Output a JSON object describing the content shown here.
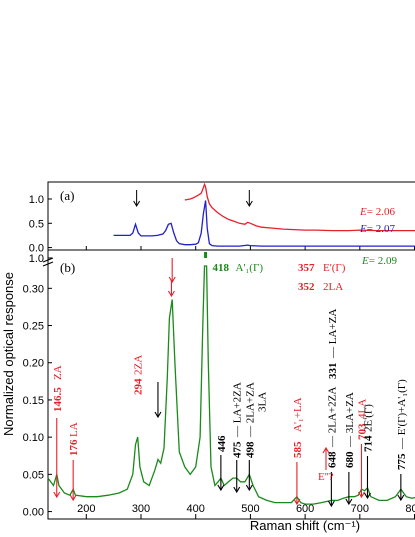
{
  "chart_data": {
    "type": "line",
    "xlabel": "Raman shift (cm⁻¹)",
    "ylabel": "Normalized optical response",
    "xlim": [
      130,
      810
    ],
    "x_ticks": [
      "200",
      "300",
      "400",
      "500",
      "600",
      "700",
      "800"
    ],
    "x_tick_values": [
      200,
      300,
      400,
      500,
      600,
      700,
      800
    ],
    "panels": [
      {
        "label": "(a)",
        "ylim": [
          -0.05,
          1.35
        ],
        "y_ticks": [
          "0.0",
          "0.5",
          "1.0"
        ],
        "y_tick_values": [
          0.0,
          0.5,
          1.0
        ],
        "series": [
          {
            "name": "E=2.06",
            "color": "#e8202a",
            "x": [
              380,
              385,
              390,
              395,
              400,
              405,
              410,
              413,
              416,
              418,
              421,
              425,
              430,
              440,
              450,
              460,
              470,
              480,
              490,
              495,
              500,
              510,
              520,
              540,
              560,
              580,
              600,
              620,
              650,
              680,
              700,
              730,
              760,
              790,
              810
            ],
            "y": [
              0.98,
              0.99,
              1.0,
              1.02,
              1.05,
              1.08,
              1.12,
              1.2,
              1.3,
              1.25,
              1.05,
              0.9,
              0.82,
              0.72,
              0.64,
              0.58,
              0.54,
              0.5,
              0.48,
              0.52,
              0.5,
              0.45,
              0.42,
              0.4,
              0.38,
              0.37,
              0.36,
              0.36,
              0.35,
              0.35,
              0.36,
              0.35,
              0.35,
              0.35,
              0.35
            ]
          },
          {
            "name": "E=2.07",
            "color": "#2020cc",
            "x": [
              250,
              260,
              270,
              280,
              285,
              290,
              295,
              300,
              310,
              320,
              330,
              340,
              345,
              350,
              355,
              360,
              365,
              370,
              380,
              390,
              400,
              405,
              410,
              414,
              418,
              421,
              425,
              430,
              440,
              460,
              480,
              495,
              500,
              520,
              550,
              600,
              650,
              700,
              750,
              800,
              810
            ],
            "y": [
              0.25,
              0.25,
              0.25,
              0.25,
              0.3,
              0.48,
              0.3,
              0.24,
              0.24,
              0.24,
              0.25,
              0.28,
              0.35,
              0.48,
              0.5,
              0.3,
              0.14,
              0.08,
              0.06,
              0.06,
              0.07,
              0.1,
              0.3,
              0.7,
              0.97,
              0.4,
              0.08,
              0.04,
              0.03,
              0.03,
              0.03,
              0.05,
              0.04,
              0.03,
              0.03,
              0.03,
              0.03,
              0.03,
              0.03,
              0.03,
              0.03
            ]
          }
        ],
        "arrows_x": [
          292,
          498
        ],
        "legend": [
          {
            "text": "E",
            "value": "= 2.06",
            "color": "#e8202a"
          },
          {
            "text": "E",
            "value": "= 2.07",
            "color": "#2020cc"
          }
        ]
      },
      {
        "label": "(b)",
        "ylim": [
          -0.01,
          0.33
        ],
        "y_ticks": [
          "0.00",
          "0.05",
          "0.10",
          "0.15",
          "0.20",
          "0.25",
          "0.30"
        ],
        "y_tick_values": [
          0.0,
          0.05,
          0.1,
          0.15,
          0.2,
          0.25,
          0.3
        ],
        "break_tick": "1.0",
        "series": [
          {
            "name": "E=2.09",
            "color": "#1a8a1a",
            "x": [
              130,
              135,
              140,
              146,
              150,
              160,
              170,
              176,
              180,
              200,
              220,
              240,
              260,
              275,
              285,
              290,
              294,
              298,
              305,
              315,
              325,
              331,
              336,
              342,
              348,
              352,
              357,
              362,
              370,
              380,
              390,
              400,
              408,
              413,
              416,
              418,
              420,
              423,
              428,
              435,
              441,
              446,
              452,
              460,
              468,
              475,
              482,
              490,
              498,
              505,
              515,
              530,
              545,
              560,
              575,
              585,
              592,
              600,
              615,
              630,
              648,
              660,
              670,
              680,
              690,
              697,
              703,
              709,
              714,
              720,
              735,
              750,
              765,
              775,
              785,
              795,
              810
            ],
            "y": [
              0.045,
              0.04,
              0.035,
              0.05,
              0.035,
              0.025,
              0.022,
              0.03,
              0.022,
              0.02,
              0.02,
              0.022,
              0.025,
              0.03,
              0.05,
              0.09,
              0.1,
              0.06,
              0.04,
              0.035,
              0.055,
              0.07,
              0.065,
              0.085,
              0.18,
              0.26,
              0.285,
              0.2,
              0.08,
              0.06,
              0.05,
              0.06,
              0.1,
              0.25,
              0.33,
              0.33,
              0.33,
              0.2,
              0.06,
              0.035,
              0.04,
              0.045,
              0.035,
              0.04,
              0.045,
              0.045,
              0.04,
              0.04,
              0.05,
              0.035,
              0.02,
              0.015,
              0.012,
              0.012,
              0.012,
              0.02,
              0.012,
              0.01,
              0.01,
              0.012,
              0.015,
              0.015,
              0.018,
              0.02,
              0.02,
              0.022,
              0.03,
              0.028,
              0.032,
              0.02,
              0.015,
              0.015,
              0.02,
              0.03,
              0.02,
              0.018,
              0.02
            ]
          }
        ],
        "legend": [
          {
            "text": "E",
            "value": "= 2.09",
            "color": "#1a8a1a"
          }
        ]
      }
    ],
    "annotations": [
      {
        "text": "146.5",
        "bold": true,
        "color": "#e8202a",
        "x": 146
      },
      {
        "text": " ZA",
        "bold": false,
        "color": "#e8202a",
        "x": 146
      },
      {
        "text": "176",
        "bold": true,
        "color": "#e8202a",
        "x": 176
      },
      {
        "text": " LA",
        "bold": false,
        "color": "#e8202a",
        "x": 176
      },
      {
        "text": "294",
        "bold": true,
        "color": "#e8202a",
        "x": 294
      },
      {
        "text": "2ZA",
        "bold": false,
        "color": "#e8202a",
        "x": 294
      },
      {
        "text": "E''?",
        "bold": false,
        "color": "#e8202a",
        "x": 331
      },
      {
        "text": "331",
        "bold": true,
        "color": "#000000",
        "x": 331
      },
      {
        "text": "— LA+ZA",
        "bold": false,
        "color": "#000000",
        "x": 331
      },
      {
        "text": "357",
        "bold": true,
        "color": "#e8202a",
        "x": 357
      },
      {
        "text": "E'(Γ)",
        "bold": false,
        "color": "#e8202a",
        "x": 357
      },
      {
        "text": "352",
        "bold": true,
        "color": "#e8202a",
        "x": 352
      },
      {
        "text": "2LA",
        "bold": false,
        "color": "#e8202a",
        "x": 352
      },
      {
        "text": "418",
        "bold": true,
        "color": "#1a8a1a",
        "x": 418
      },
      {
        "text": "A'₁(Γ)",
        "bold": false,
        "color": "#1a8a1a",
        "x": 418
      },
      {
        "text": "446",
        "bold": true,
        "color": "#000000",
        "x": 446
      },
      {
        "text": "475",
        "bold": true,
        "color": "#000000",
        "x": 475
      },
      {
        "text": "— LA+2ZA",
        "bold": false,
        "color": "#000000",
        "x": 475
      },
      {
        "text": "498",
        "bold": true,
        "color": "#000000",
        "x": 498
      },
      {
        "text": "— 2LA+ZA",
        "bold": false,
        "color": "#000000",
        "x": 498
      },
      {
        "text": "3LA",
        "bold": false,
        "color": "#000000",
        "x": 520
      },
      {
        "text": "585",
        "bold": true,
        "color": "#e8202a",
        "x": 585
      },
      {
        "text": "A'₁+LA",
        "bold": false,
        "color": "#e8202a",
        "x": 585
      },
      {
        "text": "648",
        "bold": true,
        "color": "#000000",
        "x": 648
      },
      {
        "text": "— 2LA+2ZA",
        "bold": false,
        "color": "#000000",
        "x": 648
      },
      {
        "text": "680",
        "bold": true,
        "color": "#000000",
        "x": 680
      },
      {
        "text": "— 3LA+ZA",
        "bold": false,
        "color": "#000000",
        "x": 680
      },
      {
        "text": "703",
        "bold": true,
        "color": "#e8202a",
        "x": 703
      },
      {
        "text": "4LA",
        "bold": false,
        "color": "#e8202a",
        "x": 703
      },
      {
        "text": "714",
        "bold": true,
        "color": "#000000",
        "x": 714
      },
      {
        "text": "2E'(Γ)",
        "bold": false,
        "color": "#000000",
        "x": 714
      },
      {
        "text": "775",
        "bold": true,
        "color": "#000000",
        "x": 775
      },
      {
        "text": "— E'(Γ)+A'₁(Γ)",
        "bold": false,
        "color": "#000000",
        "x": 775
      }
    ]
  }
}
